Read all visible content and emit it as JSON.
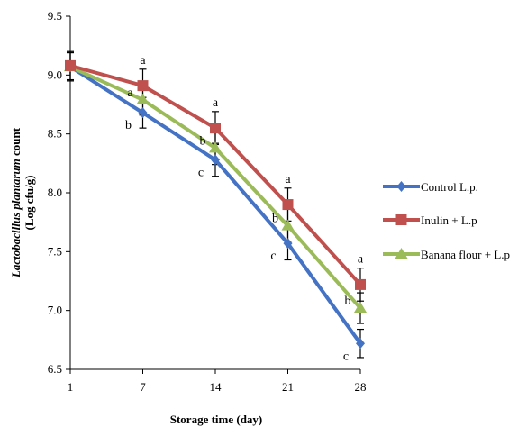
{
  "chart_data": {
    "type": "line",
    "xlabel": "Storage time (day)",
    "ylabel_italic": "Lactobacillus plantarum",
    "ylabel_rest": " count",
    "ylabel_line2": "(Log cfu/g)",
    "x": [
      1,
      7,
      14,
      21,
      28
    ],
    "x_tick_labels": [
      "1",
      "7",
      "14",
      "21",
      "28"
    ],
    "ylim": [
      6.5,
      9.5
    ],
    "y_ticks": [
      "6.5",
      "7.0",
      "7.5",
      "8.0",
      "8.5",
      "9.0",
      "9.5"
    ],
    "grid": false,
    "legend_position": "right",
    "series": [
      {
        "name": "Control L.p.",
        "color": "#4472C4",
        "marker": "diamond",
        "values": [
          9.07,
          8.68,
          8.28,
          7.57,
          6.72
        ],
        "errors": [
          0.12,
          0.13,
          0.14,
          0.14,
          0.12
        ],
        "letters": [
          "",
          "b",
          "c",
          "c",
          "c"
        ]
      },
      {
        "name": "Inulin + L.p",
        "color": "#C0504D",
        "marker": "square",
        "values": [
          9.08,
          8.91,
          8.55,
          7.9,
          7.22
        ],
        "errors": [
          0.12,
          0.14,
          0.14,
          0.14,
          0.14
        ],
        "letters": [
          "",
          "a",
          "a",
          "a",
          "a"
        ]
      },
      {
        "name": "Banana flour + L.p",
        "color": "#9BBB59",
        "marker": "triangle",
        "values": [
          9.07,
          8.79,
          8.38,
          7.72,
          7.02
        ],
        "errors": [
          0.12,
          0.13,
          0.14,
          0.14,
          0.13
        ],
        "letters": [
          "",
          "a",
          "b",
          "b",
          "b"
        ]
      }
    ]
  }
}
